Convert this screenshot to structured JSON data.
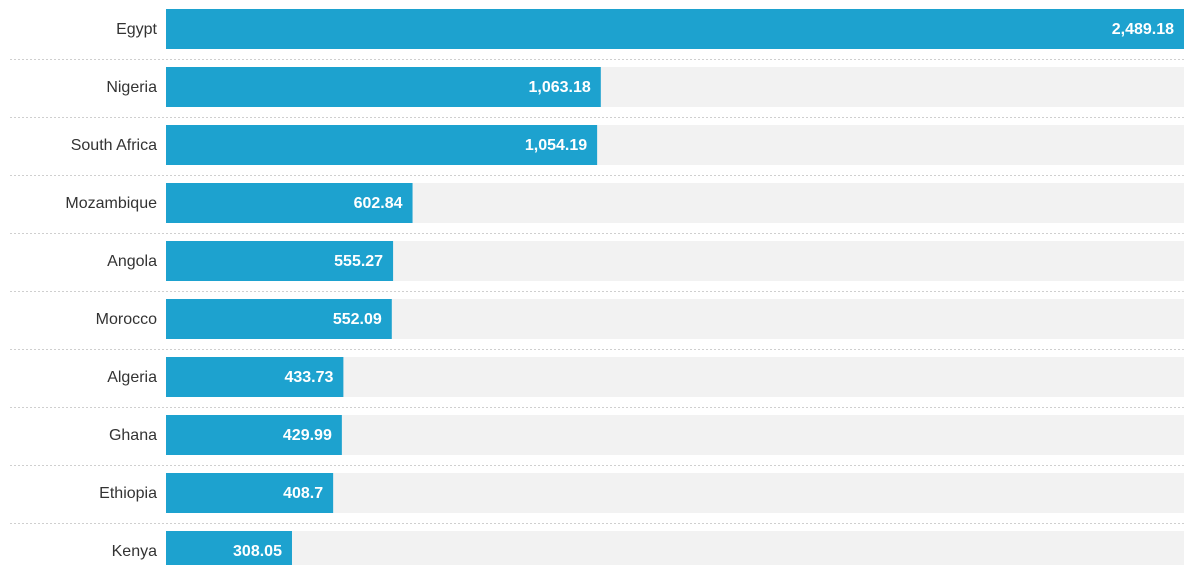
{
  "chart_data": {
    "type": "bar",
    "orientation": "horizontal",
    "categories": [
      "Egypt",
      "Nigeria",
      "South Africa",
      "Mozambique",
      "Angola",
      "Morocco",
      "Algeria",
      "Ghana",
      "Ethiopia",
      "Kenya"
    ],
    "values": [
      2489.18,
      1063.18,
      1054.19,
      602.84,
      555.27,
      552.09,
      433.73,
      429.99,
      408.7,
      308.05
    ],
    "value_labels": [
      "2,489.18",
      "1,063.18",
      "1,054.19",
      "602.84",
      "555.27",
      "552.09",
      "433.73",
      "429.99",
      "408.7",
      "308.05"
    ],
    "color": "#1da2cf",
    "track_color": "#f2f2f2"
  }
}
